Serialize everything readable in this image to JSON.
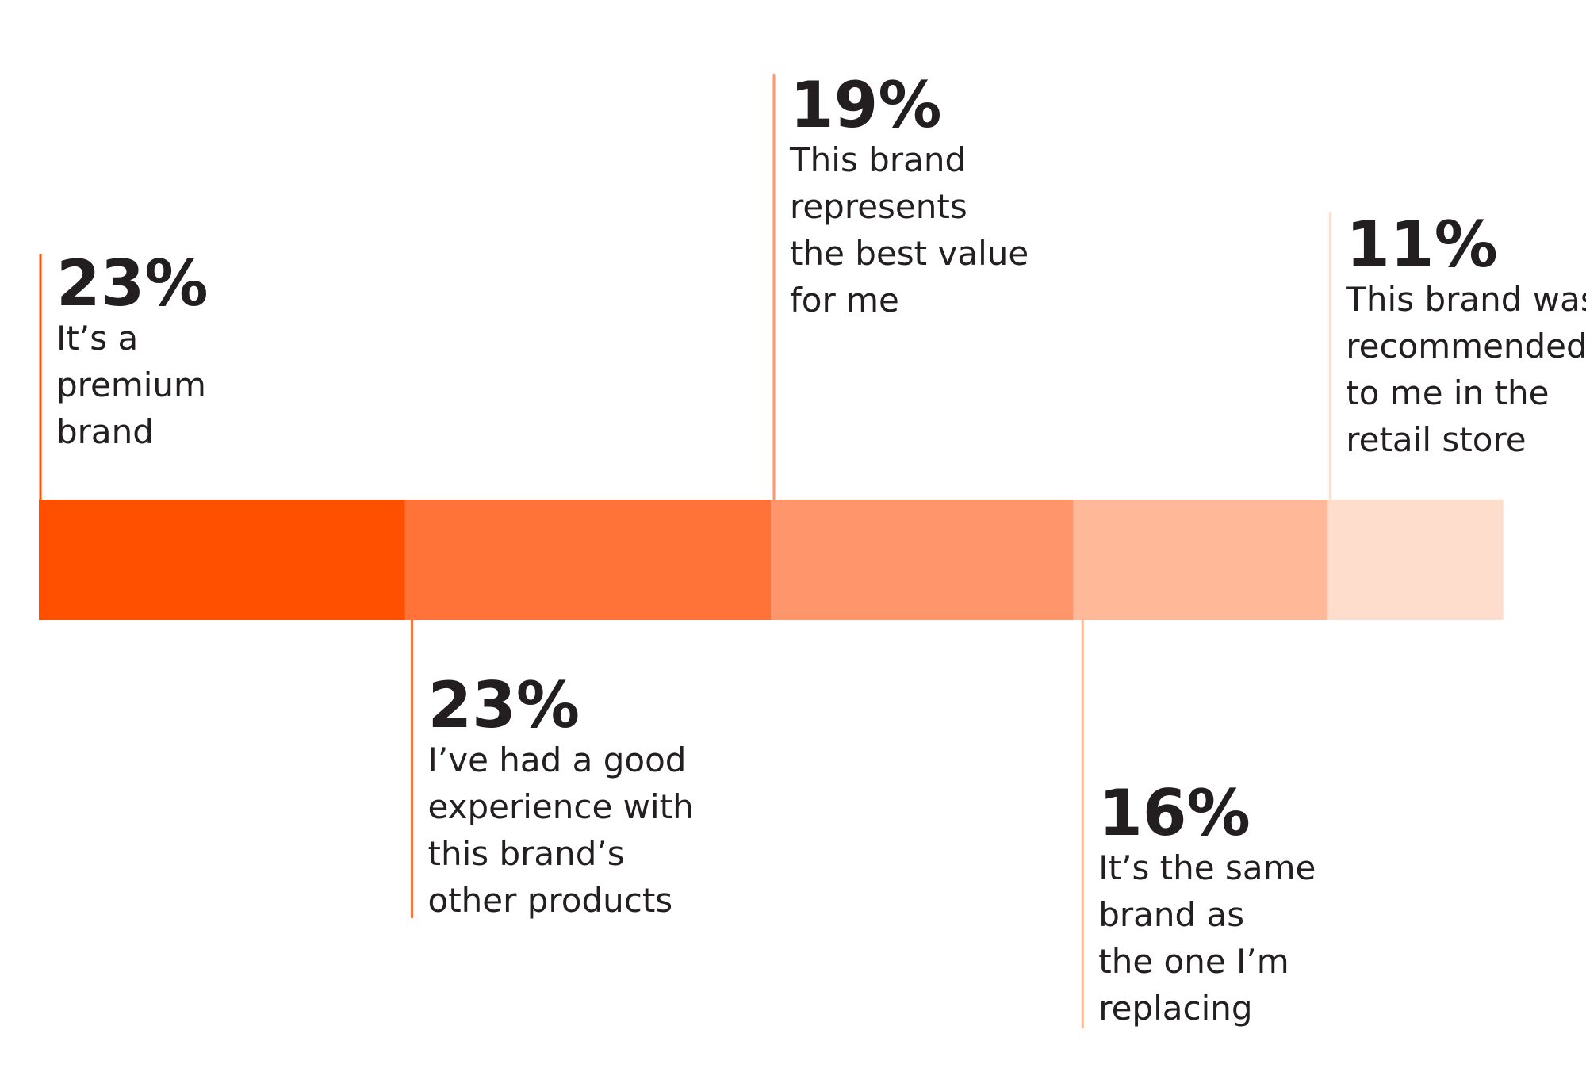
{
  "chart_data": {
    "type": "bar",
    "stacked": true,
    "orientation": "horizontal",
    "unit": "%",
    "segments": [
      {
        "value": 23,
        "value_label": "23%",
        "label_lines": [
          "It’s a",
          "premium",
          "brand"
        ],
        "color": "#FF5000",
        "label_position": "above"
      },
      {
        "value": 23,
        "value_label": "23%",
        "label_lines": [
          "I’ve had a good",
          "experience with",
          "this brand’s",
          "other products"
        ],
        "color": "#FF7338",
        "label_position": "below"
      },
      {
        "value": 19,
        "value_label": "19%",
        "label_lines": [
          "This brand",
          "represents",
          "the best value",
          "for me"
        ],
        "color": "#FF956B",
        "label_position": "above"
      },
      {
        "value": 16,
        "value_label": "16%",
        "label_lines": [
          "It’s the same",
          "brand as",
          "the one I’m",
          "replacing"
        ],
        "color": "#FFB898",
        "label_position": "below"
      },
      {
        "value": 11,
        "value_label": "11%",
        "label_lines": [
          "This brand was",
          "recommended",
          "to me in the",
          "retail store"
        ],
        "color": "#FFDDCC",
        "label_position": "above"
      }
    ]
  }
}
